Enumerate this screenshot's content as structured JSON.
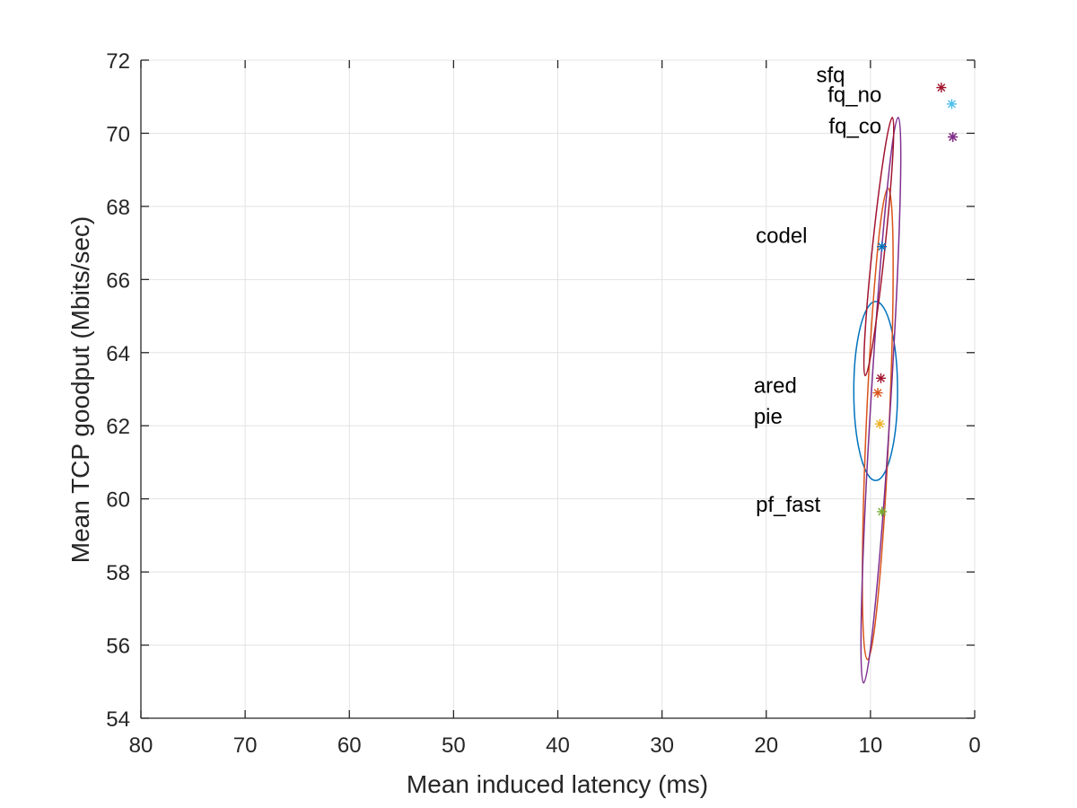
{
  "chart_data": {
    "type": "scatter",
    "title": "",
    "xlabel": "Mean induced latency (ms)",
    "ylabel": "Mean TCP goodput (Mbits/sec)",
    "xlim": [
      80,
      0
    ],
    "ylim": [
      54,
      72
    ],
    "x_reversed": true,
    "xticks": [
      80,
      70,
      60,
      50,
      40,
      30,
      20,
      10,
      0
    ],
    "yticks": [
      54,
      56,
      58,
      60,
      62,
      64,
      66,
      68,
      70,
      72
    ],
    "grid": true,
    "legend": "none",
    "series": [
      {
        "name": "codel",
        "x": 8.9,
        "y": 66.9,
        "color": "#0072BD",
        "ellipse": {
          "cx": 9.5,
          "cy": 62.95,
          "rx": 2.1,
          "ry": 2.45,
          "angle": 0
        },
        "label_x": 21.0,
        "label_y": 67.2
      },
      {
        "name": "ared",
        "x": 9.3,
        "y": 62.9,
        "color": "#D95319",
        "ellipse": {
          "cx": 9.3,
          "cy": 62.05,
          "rx": 1.1,
          "ry": 6.45,
          "angle": 2.5
        },
        "label_x": 21.2,
        "label_y": 63.1
      },
      {
        "name": "pie",
        "x": 9.1,
        "y": 62.05,
        "color": "#EDB120",
        "label_x": 21.2,
        "label_y": 62.25
      },
      {
        "name": "pf_fast",
        "x": 8.9,
        "y": 59.65,
        "color": "#77AC30",
        "label_x": 21.0,
        "label_y": 59.85
      },
      {
        "name": "sfq",
        "x": 3.2,
        "y": 71.25,
        "color": "#A2142F",
        "label_x": 15.2,
        "label_y": 71.6
      },
      {
        "name": "fq_no",
        "x": 2.2,
        "y": 70.8,
        "color": "#4DBEEE",
        "label_x": 14.1,
        "label_y": 71.05
      },
      {
        "name": "fq_co",
        "x": 2.1,
        "y": 69.9,
        "color": "#A2142F",
        "label_x": 14.0,
        "label_y": 70.2
      },
      {
        "name": "",
        "x": 2.1,
        "y": 69.9,
        "color": "#7E2F8E",
        "ellipse": {
          "cx": 9.0,
          "cy": 62.7,
          "rx": 0.95,
          "ry": 7.75,
          "angle": 3.5
        }
      },
      {
        "name": "",
        "x": 9.0,
        "y": 63.3,
        "color": "#A2142F",
        "ellipse": {
          "cx": 9.2,
          "cy": 66.9,
          "rx": 0.6,
          "ry": 3.55,
          "angle": 6
        }
      }
    ]
  }
}
